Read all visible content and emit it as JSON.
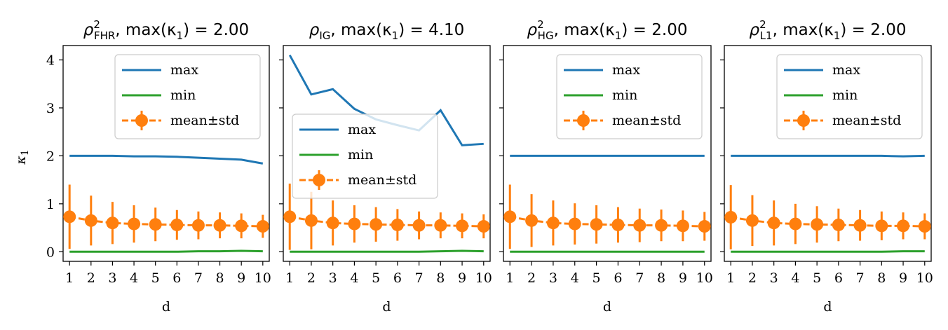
{
  "colors": {
    "max": "#1f77b4",
    "min": "#2ca02c",
    "mean": "#ff7f0e"
  },
  "shared": {
    "xlabel": "d",
    "ylabel_symbol": "κ",
    "ylabel_sub": "1",
    "yticks": [
      0,
      1,
      2,
      3,
      4
    ],
    "ylim": [
      -0.2,
      4.3
    ],
    "xticks": [
      1,
      2,
      3,
      4,
      5,
      6,
      7,
      8,
      9,
      10
    ],
    "xlim": [
      0.7,
      10.3
    ]
  },
  "chart_data": [
    {
      "type": "line",
      "title": {
        "symbol": "ρ",
        "sup": "2",
        "sub": "FHR",
        "rest": ", max(κ",
        "rest_sub": "1",
        "tail": ") = 2.00"
      },
      "legend_placement": "upper-right",
      "x": [
        1,
        2,
        3,
        4,
        5,
        6,
        7,
        8,
        9,
        10
      ],
      "series": [
        {
          "name": "max",
          "values": [
            2.0,
            2.0,
            2.0,
            1.99,
            1.99,
            1.98,
            1.96,
            1.94,
            1.92,
            1.84
          ]
        },
        {
          "name": "min",
          "values": [
            0.0,
            0.0,
            0.0,
            0.0,
            0.0,
            0.0,
            0.01,
            0.01,
            0.02,
            0.01
          ]
        },
        {
          "name": "mean±std",
          "values": [
            0.73,
            0.65,
            0.6,
            0.58,
            0.57,
            0.56,
            0.55,
            0.55,
            0.54,
            0.53
          ],
          "std": [
            0.67,
            0.52,
            0.44,
            0.39,
            0.35,
            0.31,
            0.29,
            0.27,
            0.26,
            0.24
          ]
        }
      ]
    },
    {
      "type": "line",
      "title": {
        "symbol": "ρ",
        "sup": "",
        "sub": "IG",
        "rest": ", max(κ",
        "rest_sub": "1",
        "tail": ") = 4.10"
      },
      "legend_placement": "center-left",
      "x": [
        1,
        2,
        3,
        4,
        5,
        6,
        7,
        8,
        9,
        10
      ],
      "series": [
        {
          "name": "max",
          "values": [
            4.1,
            3.28,
            3.39,
            2.98,
            2.76,
            2.64,
            2.53,
            2.95,
            2.22,
            2.25
          ]
        },
        {
          "name": "min",
          "values": [
            0.0,
            0.0,
            0.0,
            0.0,
            0.0,
            0.0,
            0.0,
            0.01,
            0.02,
            0.01
          ]
        },
        {
          "name": "mean±std",
          "values": [
            0.73,
            0.65,
            0.6,
            0.58,
            0.57,
            0.56,
            0.55,
            0.55,
            0.54,
            0.53
          ],
          "std": [
            0.69,
            0.6,
            0.47,
            0.39,
            0.36,
            0.33,
            0.29,
            0.27,
            0.26,
            0.25
          ]
        }
      ]
    },
    {
      "type": "line",
      "title": {
        "symbol": "ρ",
        "sup": "2",
        "sub": "HG",
        "rest": ", max(κ",
        "rest_sub": "1",
        "tail": ") = 2.00"
      },
      "legend_placement": "upper-right",
      "x": [
        1,
        2,
        3,
        4,
        5,
        6,
        7,
        8,
        9,
        10
      ],
      "series": [
        {
          "name": "max",
          "values": [
            2.0,
            2.0,
            2.0,
            2.0,
            2.0,
            2.0,
            2.0,
            2.0,
            2.0,
            2.0
          ]
        },
        {
          "name": "min",
          "values": [
            0.0,
            0.0,
            0.0,
            0.0,
            0.0,
            0.0,
            0.0,
            0.0,
            0.0,
            0.0
          ]
        },
        {
          "name": "mean±std",
          "values": [
            0.73,
            0.65,
            0.6,
            0.58,
            0.57,
            0.56,
            0.55,
            0.55,
            0.54,
            0.53
          ],
          "std": [
            0.67,
            0.55,
            0.47,
            0.43,
            0.4,
            0.37,
            0.35,
            0.33,
            0.32,
            0.3
          ]
        }
      ]
    },
    {
      "type": "line",
      "title": {
        "symbol": "ρ",
        "sup": "2",
        "sub": "L1",
        "rest": ", max(κ",
        "rest_sub": "1",
        "tail": ") = 2.00"
      },
      "legend_placement": "upper-right",
      "x": [
        1,
        2,
        3,
        4,
        5,
        6,
        7,
        8,
        9,
        10
      ],
      "series": [
        {
          "name": "max",
          "values": [
            2.0,
            2.0,
            2.0,
            2.0,
            2.0,
            2.0,
            2.0,
            2.0,
            1.99,
            2.0
          ]
        },
        {
          "name": "min",
          "values": [
            0.0,
            0.0,
            0.0,
            0.0,
            0.0,
            0.0,
            0.0,
            0.0,
            0.01,
            0.01
          ]
        },
        {
          "name": "mean±std",
          "values": [
            0.72,
            0.65,
            0.6,
            0.58,
            0.57,
            0.56,
            0.55,
            0.54,
            0.54,
            0.53
          ],
          "std": [
            0.67,
            0.53,
            0.47,
            0.42,
            0.38,
            0.34,
            0.32,
            0.3,
            0.28,
            0.27
          ]
        }
      ]
    }
  ]
}
